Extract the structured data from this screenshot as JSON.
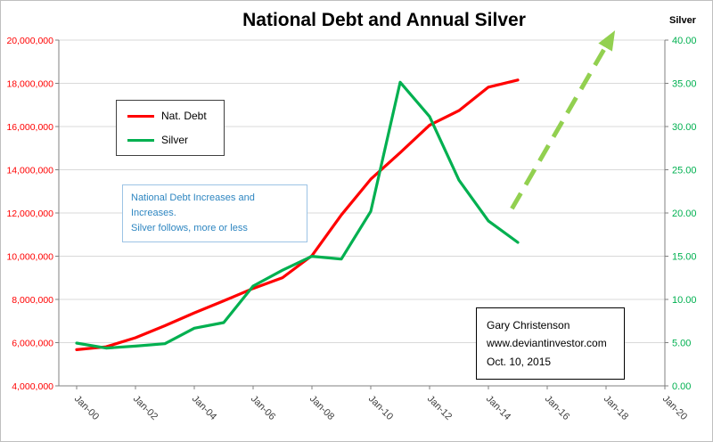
{
  "title": "National Debt  and Annual Silver",
  "right_axis_title": "Silver",
  "legend": {
    "debt_label": "Nat. Debt",
    "silver_label": "Silver"
  },
  "annotation": {
    "line1": "National Debt Increases and Increases.",
    "line2": "Silver follows, more or less"
  },
  "credit": {
    "line1": "Gary Christenson",
    "line2": "www.deviantinvestor.com",
    "line3": "Oct. 10, 2015"
  },
  "colors": {
    "debt_line": "#ff0000",
    "silver_line": "#00b050",
    "arrow": "#92d050",
    "annotation_text": "#2e86c1",
    "annotation_border": "#9cc3e5",
    "grid": "#d9d9d9",
    "axis": "#808080",
    "x_label": "#404040"
  },
  "chart_data": {
    "type": "line",
    "x": [
      2000,
      2001,
      2002,
      2003,
      2004,
      2005,
      2006,
      2007,
      2008,
      2009,
      2010,
      2011,
      2012,
      2013,
      2014,
      2015
    ],
    "x_tick_years": [
      2000,
      2002,
      2004,
      2006,
      2008,
      2010,
      2012,
      2014,
      2016,
      2018,
      2020
    ],
    "x_tick_labels": [
      "Jan-00",
      "Jan-02",
      "Jan-04",
      "Jan-06",
      "Jan-08",
      "Jan-10",
      "Jan-12",
      "Jan-14",
      "Jan-16",
      "Jan-18",
      "Jan-20"
    ],
    "series": [
      {
        "name": "Nat. Debt",
        "axis": "left",
        "color": "#ff0000",
        "values": [
          5674000,
          5807000,
          6228000,
          6783000,
          7379000,
          7933000,
          8507000,
          9008000,
          10025000,
          11910000,
          13562000,
          14790000,
          16066000,
          16738000,
          17824000,
          18151000
        ]
      },
      {
        "name": "Silver",
        "axis": "right",
        "color": "#00b050",
        "values": [
          4.95,
          4.37,
          4.6,
          4.88,
          6.67,
          7.32,
          11.55,
          13.38,
          14.99,
          14.67,
          20.19,
          35.12,
          31.15,
          23.79,
          19.08,
          16.6
        ]
      }
    ],
    "left_axis": {
      "min": 4000000,
      "max": 20000000,
      "step": 2000000,
      "color": "#ff0000",
      "tick_labels": [
        "4,000,000",
        "6,000,000",
        "8,000,000",
        "10,000,000",
        "12,000,000",
        "14,000,000",
        "16,000,000",
        "18,000,000",
        "20,000,000"
      ]
    },
    "right_axis": {
      "min": 0,
      "max": 40,
      "step": 5,
      "color": "#00b050",
      "tick_labels": [
        "0.00",
        "5.00",
        "10.00",
        "15.00",
        "20.00",
        "25.00",
        "30.00",
        "35.00",
        "40.00"
      ]
    },
    "legend_position": "upper-left-box",
    "grid": true,
    "projection_arrow": {
      "style": "dashed",
      "color": "#92d050",
      "x1": 2014.8,
      "y1_right": 20.5,
      "x2": 2018.2,
      "y2_right": 40.5
    }
  }
}
